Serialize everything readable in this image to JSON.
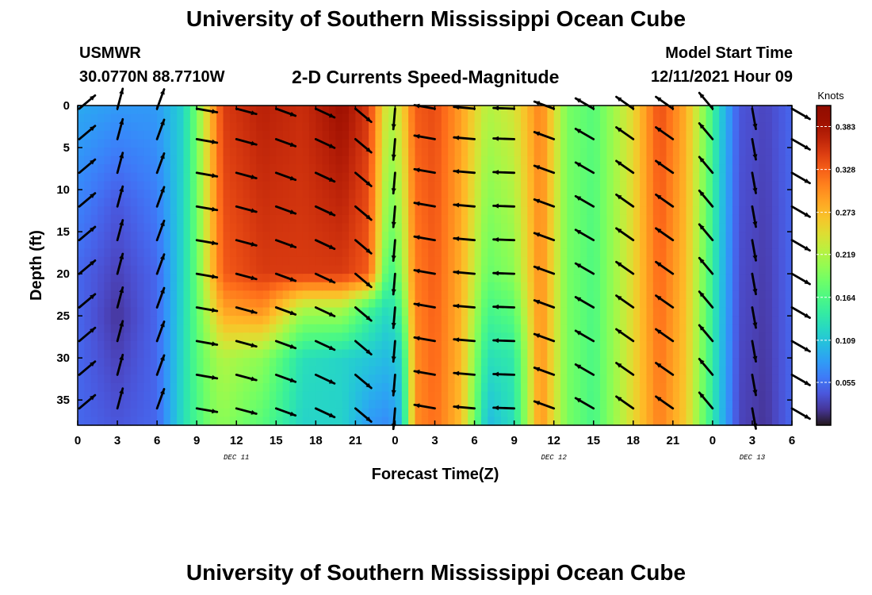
{
  "header": {
    "title": "University of Southern Mississippi Ocean Cube",
    "station": "USMWR",
    "coordinates": "30.0770N  88.7710W",
    "subtitle": "2-D Currents Speed-Magnitude",
    "model_start_label": "Model Start Time",
    "model_start_value": "12/11/2021 Hour 09",
    "repeated_title": "University of Southern Mississippi Ocean Cube"
  },
  "chart_data": {
    "type": "heatmap",
    "title": "2-D Currents Speed-Magnitude",
    "xlabel": "Forecast Time(Z)",
    "ylabel": "Depth (ft)",
    "x_tick_labels": [
      "0",
      "3",
      "6",
      "9",
      "12",
      "15",
      "18",
      "21",
      "0",
      "3",
      "6",
      "9",
      "12",
      "15",
      "18",
      "21",
      "0",
      "3",
      "6"
    ],
    "x_range_hours_from_first_tick": [
      0,
      54
    ],
    "date_labels": [
      {
        "label": "DEC 11",
        "at_tick": 4
      },
      {
        "label": "DEC 12",
        "at_tick": 12
      },
      {
        "label": "DEC 13",
        "at_tick": 17
      }
    ],
    "y_tick_labels": [
      "0",
      "5",
      "10",
      "15",
      "20",
      "25",
      "30",
      "35"
    ],
    "y_ticks": [
      0,
      5,
      10,
      15,
      20,
      25,
      30,
      35
    ],
    "ylim": [
      0,
      38
    ],
    "y_inverted": true,
    "colorbar": {
      "unit": "Knots",
      "tick_labels": [
        "0.383",
        "0.328",
        "0.273",
        "0.219",
        "0.164",
        "0.109",
        "0.055"
      ],
      "ticks": [
        0.383,
        0.328,
        0.273,
        0.219,
        0.164,
        0.109,
        0.055
      ],
      "range": [
        0.0,
        0.41
      ],
      "colormap": "turbo"
    },
    "speed_profile_by_time": [
      {
        "hour": 0,
        "speed_by_depth": [
          [
            0,
            0.09
          ],
          [
            20,
            0.05
          ],
          [
            38,
            0.05
          ]
        ]
      },
      {
        "hour": 3,
        "speed_by_depth": [
          [
            0,
            0.08
          ],
          [
            12,
            0.04
          ],
          [
            25,
            0.02
          ],
          [
            38,
            0.04
          ]
        ]
      },
      {
        "hour": 6,
        "speed_by_depth": [
          [
            0,
            0.08
          ],
          [
            20,
            0.05
          ],
          [
            38,
            0.05
          ]
        ]
      },
      {
        "hour": 8,
        "speed_by_depth": [
          [
            0,
            0.12
          ],
          [
            38,
            0.13
          ]
        ]
      },
      {
        "hour": 9,
        "speed_by_depth": [
          [
            0,
            0.19
          ],
          [
            20,
            0.18
          ],
          [
            38,
            0.16
          ]
        ]
      },
      {
        "hour": 10,
        "speed_by_depth": [
          [
            0,
            0.27
          ],
          [
            20,
            0.26
          ],
          [
            30,
            0.2
          ],
          [
            38,
            0.19
          ]
        ]
      },
      {
        "hour": 11,
        "speed_by_depth": [
          [
            0,
            0.35
          ],
          [
            20,
            0.33
          ],
          [
            25,
            0.28
          ],
          [
            30,
            0.22
          ],
          [
            38,
            0.2
          ]
        ]
      },
      {
        "hour": 14,
        "speed_by_depth": [
          [
            0,
            0.37
          ],
          [
            20,
            0.35
          ],
          [
            25,
            0.29
          ],
          [
            30,
            0.2
          ],
          [
            38,
            0.17
          ]
        ]
      },
      {
        "hour": 17,
        "speed_by_depth": [
          [
            0,
            0.36
          ],
          [
            20,
            0.35
          ],
          [
            24,
            0.22
          ],
          [
            30,
            0.13
          ],
          [
            38,
            0.12
          ]
        ]
      },
      {
        "hour": 20,
        "speed_by_depth": [
          [
            0,
            0.39
          ],
          [
            20,
            0.35
          ],
          [
            24,
            0.22
          ],
          [
            30,
            0.12
          ],
          [
            38,
            0.12
          ]
        ]
      },
      {
        "hour": 22,
        "speed_by_depth": [
          [
            0,
            0.35
          ],
          [
            20,
            0.33
          ],
          [
            24,
            0.16
          ],
          [
            30,
            0.11
          ],
          [
            38,
            0.08
          ]
        ]
      },
      {
        "hour": 23.5,
        "speed_by_depth": [
          [
            0,
            0.22
          ],
          [
            15,
            0.18
          ],
          [
            25,
            0.12
          ],
          [
            38,
            0.07
          ]
        ]
      },
      {
        "hour": 24.5,
        "speed_by_depth": [
          [
            0,
            0.25
          ],
          [
            20,
            0.2
          ],
          [
            30,
            0.12
          ],
          [
            38,
            0.1
          ]
        ]
      },
      {
        "hour": 25.5,
        "speed_by_depth": [
          [
            0,
            0.33
          ],
          [
            30,
            0.3
          ],
          [
            38,
            0.3
          ]
        ]
      },
      {
        "hour": 27,
        "speed_by_depth": [
          [
            0,
            0.34
          ],
          [
            38,
            0.32
          ]
        ]
      },
      {
        "hour": 29,
        "speed_by_depth": [
          [
            0,
            0.29
          ],
          [
            38,
            0.27
          ]
        ]
      },
      {
        "hour": 31,
        "speed_by_depth": [
          [
            0,
            0.22
          ],
          [
            20,
            0.18
          ],
          [
            30,
            0.13
          ],
          [
            38,
            0.1
          ]
        ]
      },
      {
        "hour": 33,
        "speed_by_depth": [
          [
            0,
            0.24
          ],
          [
            20,
            0.2
          ],
          [
            30,
            0.14
          ],
          [
            38,
            0.13
          ]
        ]
      },
      {
        "hour": 35,
        "speed_by_depth": [
          [
            0,
            0.31
          ],
          [
            38,
            0.3
          ]
        ]
      },
      {
        "hour": 37,
        "speed_by_depth": [
          [
            0,
            0.19
          ],
          [
            38,
            0.19
          ]
        ]
      },
      {
        "hour": 39,
        "speed_by_depth": [
          [
            0,
            0.17
          ],
          [
            38,
            0.16
          ]
        ]
      },
      {
        "hour": 42,
        "speed_by_depth": [
          [
            0,
            0.25
          ],
          [
            38,
            0.25
          ]
        ]
      },
      {
        "hour": 44,
        "speed_by_depth": [
          [
            0,
            0.34
          ],
          [
            38,
            0.31
          ]
        ]
      },
      {
        "hour": 46,
        "speed_by_depth": [
          [
            0,
            0.28
          ],
          [
            38,
            0.26
          ]
        ]
      },
      {
        "hour": 47.5,
        "speed_by_depth": [
          [
            0,
            0.19
          ],
          [
            38,
            0.17
          ]
        ]
      },
      {
        "hour": 48.5,
        "speed_by_depth": [
          [
            0,
            0.12
          ],
          [
            38,
            0.11
          ]
        ]
      },
      {
        "hour": 50,
        "speed_by_depth": [
          [
            0,
            0.04
          ],
          [
            38,
            0.03
          ]
        ]
      },
      {
        "hour": 52,
        "speed_by_depth": [
          [
            0,
            0.03
          ],
          [
            38,
            0.02
          ]
        ]
      },
      {
        "hour": 54,
        "speed_by_depth": [
          [
            0,
            0.05
          ],
          [
            38,
            0.05
          ]
        ]
      }
    ],
    "vector_depths": [
      0,
      4,
      8,
      12,
      16,
      20,
      24,
      28,
      32,
      36
    ],
    "vector_direction_by_time": [
      {
        "hour": 0,
        "angle_deg": 40
      },
      {
        "hour": 3,
        "angle_deg": 75
      },
      {
        "hour": 6,
        "angle_deg": 70
      },
      {
        "hour": 9,
        "angle_deg": -10
      },
      {
        "hour": 12,
        "angle_deg": -15
      },
      {
        "hour": 15,
        "angle_deg": -20
      },
      {
        "hour": 18,
        "angle_deg": -25
      },
      {
        "hour": 21,
        "angle_deg": -40
      },
      {
        "hour": 22.5,
        "angle_deg": -45
      },
      {
        "hour": 24,
        "angle_deg": -95
      },
      {
        "hour": 27,
        "angle_deg": 170
      },
      {
        "hour": 30,
        "angle_deg": 175
      },
      {
        "hour": 33,
        "angle_deg": 178
      },
      {
        "hour": 36,
        "angle_deg": 160
      },
      {
        "hour": 39,
        "angle_deg": 150
      },
      {
        "hour": 42,
        "angle_deg": 145
      },
      {
        "hour": 45,
        "angle_deg": 145
      },
      {
        "hour": 48,
        "angle_deg": 130
      },
      {
        "hour": 51,
        "angle_deg": -80
      },
      {
        "hour": 54,
        "angle_deg": -30
      }
    ]
  }
}
